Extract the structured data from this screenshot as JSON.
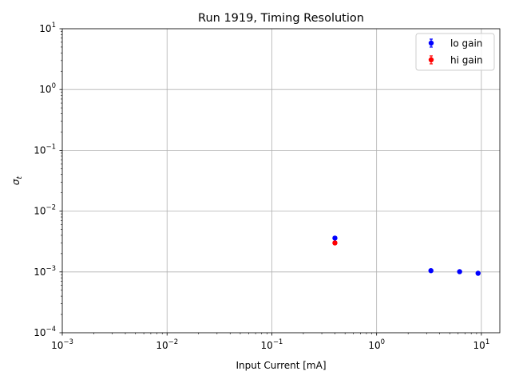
{
  "chart_data": {
    "type": "scatter",
    "title": "Run 1919, Timing Resolution",
    "xlabel": "Input Current [mA]",
    "ylabel": "σ",
    "ylabel_subscript": "t",
    "xscale": "log",
    "yscale": "log",
    "xlim": [
      0.001,
      15
    ],
    "ylim": [
      0.0001,
      10
    ],
    "grid": true,
    "legend_position": "top-right",
    "x_ticks": [
      {
        "value": 0.001,
        "base": "10",
        "exp": "−3"
      },
      {
        "value": 0.01,
        "base": "10",
        "exp": "−2"
      },
      {
        "value": 0.1,
        "base": "10",
        "exp": "−1"
      },
      {
        "value": 1,
        "base": "10",
        "exp": "0"
      },
      {
        "value": 10,
        "base": "10",
        "exp": "1"
      }
    ],
    "y_ticks": [
      {
        "value": 0.0001,
        "base": "10",
        "exp": "−4"
      },
      {
        "value": 0.001,
        "base": "10",
        "exp": "−3"
      },
      {
        "value": 0.01,
        "base": "10",
        "exp": "−2"
      },
      {
        "value": 0.1,
        "base": "10",
        "exp": "−1"
      },
      {
        "value": 1,
        "base": "10",
        "exp": "0"
      },
      {
        "value": 10,
        "base": "10",
        "exp": "1"
      }
    ],
    "series": [
      {
        "name": "lo gain",
        "color": "#0000ff",
        "x": [
          0.4,
          3.3,
          6.2,
          9.3
        ],
        "y": [
          0.0036,
          0.00105,
          0.00101,
          0.00095
        ]
      },
      {
        "name": "hi gain",
        "color": "#ff0000",
        "x": [
          0.4
        ],
        "y": [
          0.003
        ]
      }
    ]
  }
}
